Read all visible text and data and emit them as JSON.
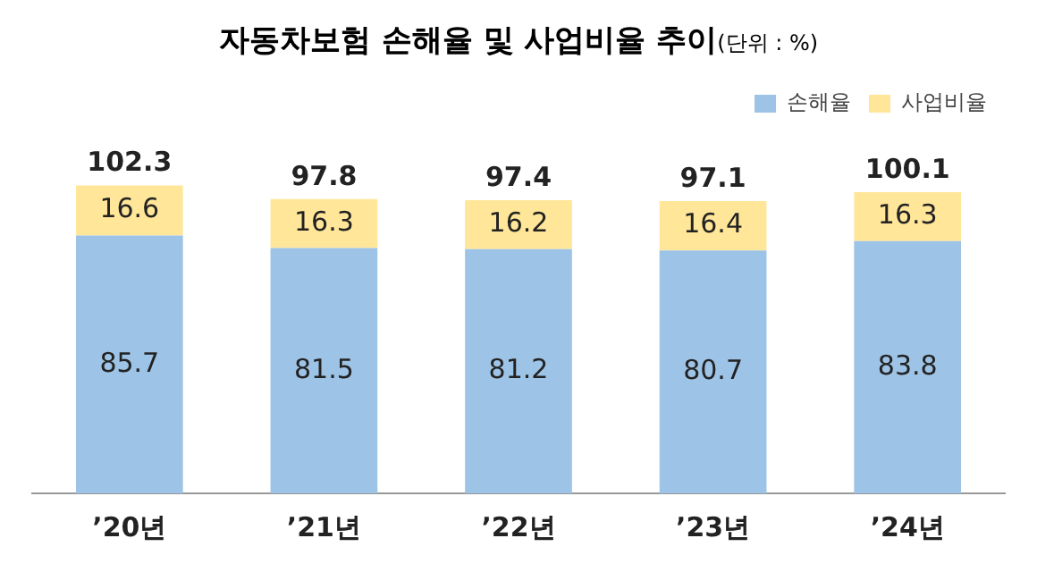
{
  "chart_data": {
    "type": "bar",
    "title": "자동차보험 손해율 및 사업비율 추이",
    "subtitle": "(단위 : %)",
    "categories": [
      "’20년",
      "’21년",
      "’22년",
      "’23년",
      "’24년"
    ],
    "stacked": true,
    "data_labels": true,
    "legend": "top right",
    "series": [
      {
        "name": "손해율",
        "color": "#9dc3e6",
        "values": [
          85.7,
          81.5,
          81.2,
          80.7,
          83.8
        ]
      },
      {
        "name": "사업비율",
        "color": "#ffe699",
        "values": [
          16.6,
          16.3,
          16.2,
          16.4,
          16.3
        ]
      }
    ],
    "totals": [
      "102.3",
      "97.8",
      "97.4",
      "97.1",
      "100.1"
    ]
  }
}
